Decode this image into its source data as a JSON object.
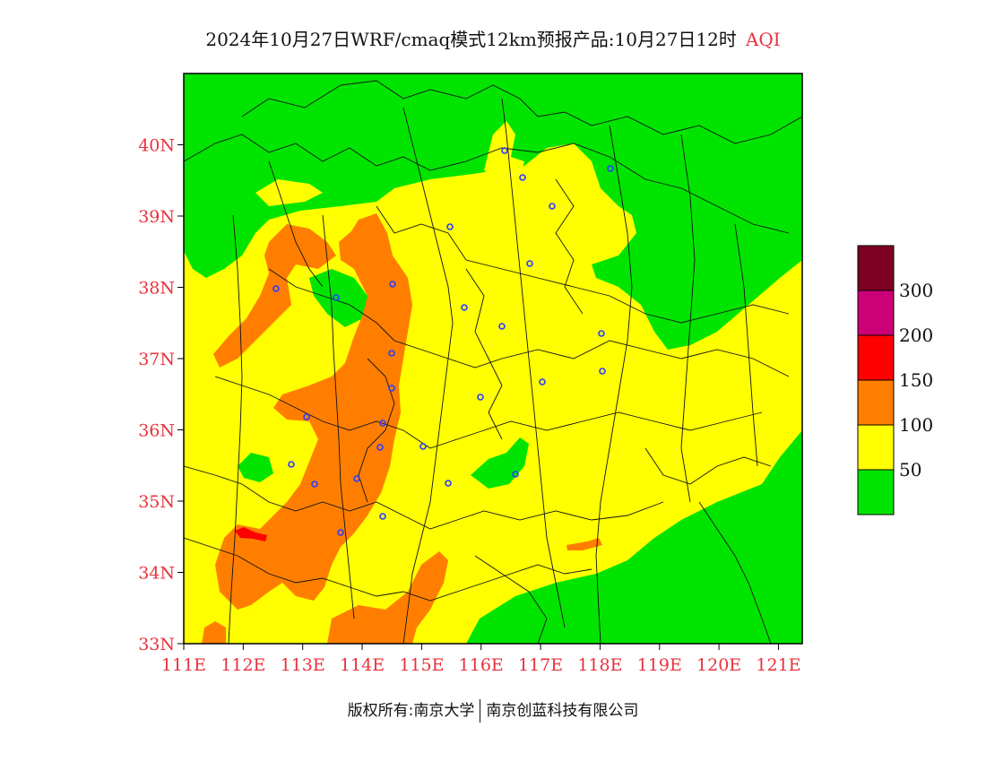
{
  "title": {
    "main": "2024年10月27日WRF/cmaq模式12km预报产品:10月27日12时",
    "variable": "AQI"
  },
  "map": {
    "lon_range": [
      111,
      121.4
    ],
    "lat_range": [
      33,
      41
    ],
    "lat_ticks": [
      {
        "value": 40,
        "label": "40N"
      },
      {
        "value": 39,
        "label": "39N"
      },
      {
        "value": 38,
        "label": "38N"
      },
      {
        "value": 37,
        "label": "37N"
      },
      {
        "value": 36,
        "label": "36N"
      },
      {
        "value": 35,
        "label": "35N"
      },
      {
        "value": 34,
        "label": "34N"
      },
      {
        "value": 33,
        "label": "33N"
      }
    ],
    "lon_ticks": [
      {
        "value": 111,
        "label": "111E"
      },
      {
        "value": 112,
        "label": "112E"
      },
      {
        "value": 113,
        "label": "113E"
      },
      {
        "value": 114,
        "label": "114E"
      },
      {
        "value": 115,
        "label": "115E"
      },
      {
        "value": 116,
        "label": "116E"
      },
      {
        "value": 117,
        "label": "117E"
      },
      {
        "value": 118,
        "label": "118E"
      },
      {
        "value": 119,
        "label": "119E"
      },
      {
        "value": 120,
        "label": "120E"
      },
      {
        "value": 121,
        "label": "121E"
      }
    ],
    "colors": {
      "good": "#00e400",
      "moderate": "#ffff00",
      "usg": "#ff7e00",
      "unhealthy": "#ff0000"
    }
  },
  "legend": {
    "bins": [
      {
        "color": "#7e0023"
      },
      {
        "color": "#cc0077"
      },
      {
        "color": "#ff0000"
      },
      {
        "color": "#ff7e00"
      },
      {
        "color": "#ffff00"
      },
      {
        "color": "#00e400"
      }
    ],
    "labels": [
      "300",
      "200",
      "150",
      "100",
      "50"
    ]
  },
  "footer": {
    "copyright": "版权所有:南京大学",
    "company": "南京创蓝科技有限公司"
  }
}
